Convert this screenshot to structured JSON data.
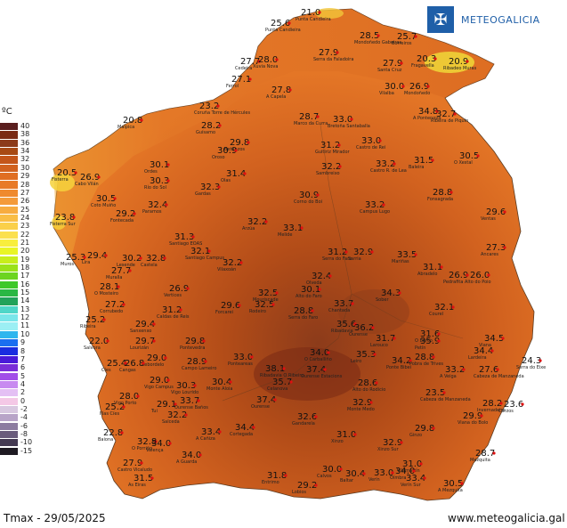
{
  "brand": {
    "name": "METEOGALICIA",
    "icon": "galicia-shield-icon"
  },
  "legend": {
    "title": "ºC",
    "items": [
      {
        "value": "40",
        "color": "#5a1e1e"
      },
      {
        "value": "38",
        "color": "#7a2a14"
      },
      {
        "value": "36",
        "color": "#8c3b1a"
      },
      {
        "value": "34",
        "color": "#a84a14"
      },
      {
        "value": "32",
        "color": "#c4561a"
      },
      {
        "value": "30",
        "color": "#d2621f"
      },
      {
        "value": "29",
        "color": "#e06e22"
      },
      {
        "value": "28",
        "color": "#e87a28"
      },
      {
        "value": "27",
        "color": "#ef8a2e"
      },
      {
        "value": "26",
        "color": "#f49b3a"
      },
      {
        "value": "25",
        "color": "#f7ac40"
      },
      {
        "value": "24",
        "color": "#f9be46"
      },
      {
        "value": "23",
        "color": "#fad04a"
      },
      {
        "value": "22",
        "color": "#fbe04e"
      },
      {
        "value": "21",
        "color": "#f8ee3e"
      },
      {
        "value": "20",
        "color": "#e9f525"
      },
      {
        "value": "19",
        "color": "#c8ee1c"
      },
      {
        "value": "18",
        "color": "#9be21a"
      },
      {
        "value": "17",
        "color": "#6cd420"
      },
      {
        "value": "16",
        "color": "#3ec82a"
      },
      {
        "value": "15",
        "color": "#2ab744"
      },
      {
        "value": "14",
        "color": "#22a25a"
      },
      {
        "value": "13",
        "color": "#4fd6c8"
      },
      {
        "value": "12",
        "color": "#7ae6ea"
      },
      {
        "value": "11",
        "color": "#9ceff4"
      },
      {
        "value": "10",
        "color": "#2fb6ee"
      },
      {
        "value": "9",
        "color": "#1a6ff0"
      },
      {
        "value": "8",
        "color": "#1a2de0"
      },
      {
        "value": "7",
        "color": "#4a1ad8"
      },
      {
        "value": "6",
        "color": "#7a2ed8"
      },
      {
        "value": "5",
        "color": "#a24ee8"
      },
      {
        "value": "4",
        "color": "#c88af0"
      },
      {
        "value": "2",
        "color": "#e4c0f4"
      },
      {
        "value": "0",
        "color": "#f4c8e6"
      },
      {
        "value": "-2",
        "color": "#d8c8e0"
      },
      {
        "value": "-4",
        "color": "#b8a4c8"
      },
      {
        "value": "-6",
        "color": "#8c7ca0"
      },
      {
        "value": "-8",
        "color": "#6a5c7c"
      },
      {
        "value": "-10",
        "color": "#443a52"
      },
      {
        "value": "-15",
        "color": "#1e1a22"
      }
    ]
  },
  "stations": [
    {
      "t": "21.0",
      "name": "Punta Candieira"
    },
    {
      "t": "25.6",
      "name": "Punta Candieira"
    },
    {
      "t": "28.5",
      "name": "Mondoñedo Gabeiras"
    },
    {
      "t": "25.7",
      "name": "Borreiros"
    },
    {
      "t": "27.9",
      "name": "Serra da Faladoira"
    },
    {
      "t": "20.3",
      "name": "Fragavella"
    },
    {
      "t": "20.9",
      "name": "Ribadeo Muras"
    },
    {
      "t": "27.7",
      "name": "Cedeira"
    },
    {
      "t": "28.0",
      "name": "Xuvia Nova"
    },
    {
      "t": "27.9",
      "name": "Santa Cruz"
    },
    {
      "t": "27.1",
      "name": "Ferrol"
    },
    {
      "t": "27.8",
      "name": "A Capela"
    },
    {
      "t": "30.0",
      "name": "Vilalba"
    },
    {
      "t": "26.9",
      "name": "Mondoñedo"
    },
    {
      "t": "23.2",
      "name": "Coruña Torre de Hércules"
    },
    {
      "t": "20.8",
      "name": "Malpica"
    },
    {
      "t": "28.7",
      "name": "Marco da Curra"
    },
    {
      "t": "33.0",
      "name": "Bretoña Santaballa"
    },
    {
      "t": "34.8",
      "name": "A Pontenova"
    },
    {
      "t": "32.7",
      "name": "Ribeira de Piquín"
    },
    {
      "t": "28.2",
      "name": "Guísamo"
    },
    {
      "t": "29.8",
      "name": "Betanzos"
    },
    {
      "t": "30.9",
      "name": "Oroso"
    },
    {
      "t": "31.2",
      "name": "Guitiriz Mirador"
    },
    {
      "t": "33.0",
      "name": "Castro de Rei"
    },
    {
      "t": "30.5",
      "name": "O Xestal"
    },
    {
      "t": "30.1",
      "name": "Ordes"
    },
    {
      "t": "32.2",
      "name": "Sambreixo"
    },
    {
      "t": "33.2",
      "name": "Castro R. de Lea"
    },
    {
      "t": "31.5",
      "name": "Baleira"
    },
    {
      "t": "20.5",
      "name": "Fisterra"
    },
    {
      "t": "26.9",
      "name": "Cabo Vilán"
    },
    {
      "t": "30.3",
      "name": "Río do Sol"
    },
    {
      "t": "32.3",
      "name": "Gardas"
    },
    {
      "t": "31.4",
      "name": "Olas"
    },
    {
      "t": "30.9",
      "name": "Corno do Boi"
    },
    {
      "t": "28.8",
      "name": "Fonsagrada"
    },
    {
      "t": "30.5",
      "name": "Coto Muiño"
    },
    {
      "t": "32.4",
      "name": "Paramos"
    },
    {
      "t": "33.2",
      "name": "Campus Lugo"
    },
    {
      "t": "29.6",
      "name": "Ventas"
    },
    {
      "t": "23.8",
      "name": "Fisterra Sur"
    },
    {
      "t": "29.2",
      "name": "Fontecada"
    },
    {
      "t": "32.2",
      "name": "Arzúa"
    },
    {
      "t": "33.1",
      "name": "Melide"
    },
    {
      "t": "31.3",
      "name": "Santiago EOAS"
    },
    {
      "t": "27.3",
      "name": "Ancares"
    },
    {
      "t": "25.3",
      "name": "Muros"
    },
    {
      "t": "29.4",
      "name": "Lira"
    },
    {
      "t": "30.2",
      "name": "Lesende"
    },
    {
      "t": "32.8",
      "name": "Castela"
    },
    {
      "t": "32.1",
      "name": "Santiago Campus"
    },
    {
      "t": "32.2",
      "name": "Vilaxoán"
    },
    {
      "t": "31.2",
      "name": "Serra do Faro"
    },
    {
      "t": "32.9",
      "name": "Sarria"
    },
    {
      "t": "33.5",
      "name": "Mariñas"
    },
    {
      "t": "27.7",
      "name": "Muralla"
    },
    {
      "t": "31.1",
      "name": "Abradelo"
    },
    {
      "t": "26.9",
      "name": "Pedrafita"
    },
    {
      "t": "26.0",
      "name": "Alto do Poio"
    },
    {
      "t": "28.1",
      "name": "O Mosteiro"
    },
    {
      "t": "26.9",
      "name": "Vertices"
    },
    {
      "t": "32.4",
      "name": "Olveda"
    },
    {
      "t": "32.5",
      "name": "Mouriscade"
    },
    {
      "t": "30.1",
      "name": "Alto do Faro"
    },
    {
      "t": "34.3",
      "name": "Sober"
    },
    {
      "t": "31.2",
      "name": "Caldas de Reis"
    },
    {
      "t": "29.6",
      "name": "Forcarei"
    },
    {
      "t": "32.5",
      "name": "Rodeiro"
    },
    {
      "t": "28.8",
      "name": "Serra do Faro"
    },
    {
      "t": "33.7",
      "name": "Chantada"
    },
    {
      "t": "32.1",
      "name": "Courel"
    },
    {
      "t": "27.2",
      "name": "Corrubedo"
    },
    {
      "t": "25.2",
      "name": "Ribeira"
    },
    {
      "t": "29.4",
      "name": "Sanxenxo"
    },
    {
      "t": "35.6",
      "name": "Ribadavia"
    },
    {
      "t": "36.2",
      "name": "Ourense"
    },
    {
      "t": "31.7",
      "name": "Larouco"
    },
    {
      "t": "31.6",
      "name": "O Barco"
    },
    {
      "t": "35.9",
      "name": "Petín"
    },
    {
      "t": "34.5",
      "name": "Viana"
    },
    {
      "t": "22.0",
      "name": "Salvora"
    },
    {
      "t": "29.7",
      "name": "Lourizán"
    },
    {
      "t": "29.8",
      "name": "Pontevedra"
    },
    {
      "t": "29.0",
      "name": "Rebordelo"
    },
    {
      "t": "28.9",
      "name": "Campo Lameiro"
    },
    {
      "t": "34.0",
      "name": "O Carballiño"
    },
    {
      "t": "35.3",
      "name": "Leiro"
    },
    {
      "t": "34.2",
      "name": "Ponte Bibei"
    },
    {
      "t": "28.8",
      "name": "Pobra de Trives"
    },
    {
      "t": "34.4",
      "name": "Lardeira"
    },
    {
      "t": "33.2",
      "name": "A Veiga"
    },
    {
      "t": "27.6",
      "name": "Cabeza de Manzaneda"
    },
    {
      "t": "24.3",
      "name": "Serra do Eixe"
    },
    {
      "t": "25.4",
      "name": "Cíes"
    },
    {
      "t": "26.8",
      "name": "Cangas"
    },
    {
      "t": "33.0",
      "name": "Ponteareas"
    },
    {
      "t": "38.1",
      "name": "Ribadavia O Ribeiro"
    },
    {
      "t": "37.4",
      "name": "Ourense Estacions"
    },
    {
      "t": "35.7",
      "name": "Celanova"
    },
    {
      "t": "28.6",
      "name": "Alto do Rodicio"
    },
    {
      "t": "29.0",
      "name": "Vigo Campus"
    },
    {
      "t": "30.3",
      "name": "Vigo Lourido"
    },
    {
      "t": "30.4",
      "name": "Monte Aloia"
    },
    {
      "t": "23.5",
      "name": "Cabeza de Manzaneda"
    },
    {
      "t": "28.2",
      "name": "Invernadeiro"
    },
    {
      "t": "23.6",
      "name": "Corzos"
    },
    {
      "t": "25.2",
      "name": "Illas Cíes"
    },
    {
      "t": "28.0",
      "name": "Vigo Porto"
    },
    {
      "t": "29.1",
      "name": "Tui"
    },
    {
      "t": "33.7",
      "name": "Ourense Baños"
    },
    {
      "t": "37.4",
      "name": "Ourense"
    },
    {
      "t": "32.9",
      "name": "Monte Medo"
    },
    {
      "t": "29.9",
      "name": "Viana do Bolo"
    },
    {
      "t": "32.2",
      "name": "Salceda"
    },
    {
      "t": "33.4",
      "name": "A Cañiza"
    },
    {
      "t": "34.4",
      "name": "Cortegada"
    },
    {
      "t": "32.6",
      "name": "Gandarela"
    },
    {
      "t": "22.8",
      "name": "Baiona"
    },
    {
      "t": "32.8",
      "name": "O Porriño"
    },
    {
      "t": "34.0",
      "name": "Valença"
    },
    {
      "t": "31.0",
      "name": "Xinzo"
    },
    {
      "t": "32.9",
      "name": "Xinzo Sur"
    },
    {
      "t": "29.8",
      "name": "Ginzo"
    },
    {
      "t": "28.7",
      "name": "Mezquita"
    },
    {
      "t": "34.0",
      "name": "A Guarda"
    },
    {
      "t": "27.9",
      "name": "Castro Vicaludo"
    },
    {
      "t": "31.5",
      "name": "As Eiras"
    },
    {
      "t": "31.8",
      "name": "Entrimo"
    },
    {
      "t": "29.2",
      "name": "Lobios"
    },
    {
      "t": "30.0",
      "name": "Calvos"
    },
    {
      "t": "30.4",
      "name": "Baltar"
    },
    {
      "t": "33.0",
      "name": "Verín"
    },
    {
      "t": "31.0",
      "name": "Vilamartín"
    },
    {
      "t": "30.5",
      "name": "A Mezquita"
    },
    {
      "t": "34.0",
      "name": "Oímbra"
    },
    {
      "t": "33.4",
      "name": "Verín Sur"
    }
  ],
  "footer": {
    "caption": "Tmax - 29/05/2025",
    "website": "www.meteogalicia.gal"
  }
}
